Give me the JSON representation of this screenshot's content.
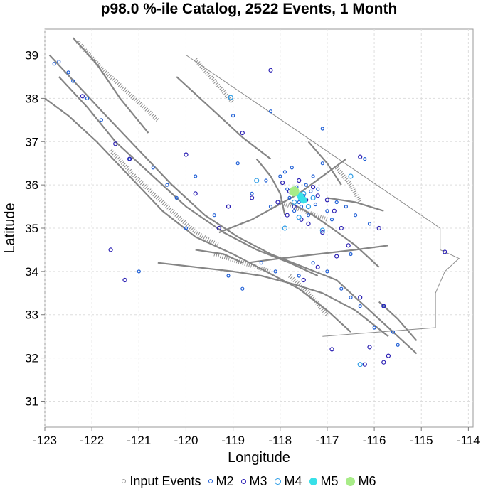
{
  "chart_data": {
    "type": "scatter",
    "title": "p98.0 %-ile Catalog, 2522 Events, 1 Month",
    "xlabel": "Longitude",
    "ylabel": "Latitude",
    "xlim": [
      -123,
      -113.9
    ],
    "ylim": [
      30.4,
      39.6
    ],
    "xticks": [
      -123,
      -122,
      -121,
      -120,
      -119,
      -118,
      -117,
      -116,
      -115,
      -114
    ],
    "yticks": [
      31,
      32,
      33,
      34,
      35,
      36,
      37,
      38,
      39
    ],
    "grid": true,
    "legend_position": "bottom",
    "legend": [
      {
        "label": "Input Events",
        "color": "#999999",
        "style": "ring"
      },
      {
        "label": "M2",
        "color": "#1f5fd6",
        "style": "ring"
      },
      {
        "label": "M3",
        "color": "#2a1fb3",
        "style": "ring"
      },
      {
        "label": "M4",
        "color": "#2f9de6",
        "style": "ring"
      },
      {
        "label": "M5",
        "color": "#38e0e8",
        "style": "filled"
      },
      {
        "label": "M6",
        "color": "#a8ec88",
        "style": "filled"
      }
    ],
    "series": [
      {
        "name": "M2",
        "points": [
          [
            -122.8,
            38.8
          ],
          [
            -122.7,
            38.85
          ],
          [
            -122.5,
            38.6
          ],
          [
            -122.4,
            38.4
          ],
          [
            -122.1,
            38.0
          ],
          [
            -121.8,
            37.5
          ],
          [
            -121.2,
            36.6
          ],
          [
            -120.7,
            36.4
          ],
          [
            -120.4,
            36.0
          ],
          [
            -120.2,
            35.7
          ],
          [
            -119.8,
            36.2
          ],
          [
            -119.4,
            35.3
          ],
          [
            -118.9,
            36.5
          ],
          [
            -118.6,
            35.8
          ],
          [
            -118.3,
            36.1
          ],
          [
            -118.2,
            35.5
          ],
          [
            -118.0,
            36.2
          ],
          [
            -117.9,
            36.3
          ],
          [
            -117.85,
            35.9
          ],
          [
            -117.8,
            35.7
          ],
          [
            -117.75,
            36.4
          ],
          [
            -117.7,
            35.4
          ],
          [
            -117.65,
            35.95
          ],
          [
            -117.6,
            35.6
          ],
          [
            -117.55,
            35.5
          ],
          [
            -117.5,
            35.75
          ],
          [
            -117.45,
            36.0
          ],
          [
            -117.4,
            35.3
          ],
          [
            -117.35,
            35.85
          ],
          [
            -117.3,
            36.2
          ],
          [
            -117.25,
            35.55
          ],
          [
            -117.2,
            35.9
          ],
          [
            -117.1,
            36.5
          ],
          [
            -117.0,
            35.4
          ],
          [
            -116.9,
            35.2
          ],
          [
            -116.8,
            35.6
          ],
          [
            -116.6,
            35.5
          ],
          [
            -116.4,
            35.3
          ],
          [
            -116.2,
            36.6
          ],
          [
            -116.1,
            35.1
          ],
          [
            -118.4,
            34.2
          ],
          [
            -118.1,
            34.0
          ],
          [
            -117.6,
            33.9
          ],
          [
            -117.3,
            34.2
          ],
          [
            -117.0,
            34.0
          ],
          [
            -116.7,
            33.6
          ],
          [
            -116.5,
            33.4
          ],
          [
            -116.3,
            33.2
          ],
          [
            -116.0,
            32.7
          ],
          [
            -115.8,
            33.2
          ],
          [
            -115.6,
            32.6
          ],
          [
            -115.5,
            32.3
          ],
          [
            -116.5,
            34.4
          ],
          [
            -119.1,
            33.9
          ],
          [
            -118.8,
            33.6
          ],
          [
            -117.1,
            37.3
          ],
          [
            -118.2,
            37.7
          ],
          [
            -119.0,
            37.6
          ],
          [
            -120.0,
            35.0
          ],
          [
            -121.0,
            34.0
          ]
        ]
      },
      {
        "name": "M3",
        "points": [
          [
            -122.2,
            38.05
          ],
          [
            -121.5,
            36.95
          ],
          [
            -121.2,
            36.6
          ],
          [
            -120.0,
            36.7
          ],
          [
            -119.8,
            35.8
          ],
          [
            -119.3,
            35.0
          ],
          [
            -119.1,
            35.5
          ],
          [
            -118.8,
            37.2
          ],
          [
            -118.6,
            35.7
          ],
          [
            -118.2,
            38.65
          ],
          [
            -118.05,
            35.6
          ],
          [
            -117.95,
            36.05
          ],
          [
            -117.85,
            35.3
          ],
          [
            -117.8,
            35.85
          ],
          [
            -117.7,
            35.5
          ],
          [
            -117.6,
            36.1
          ],
          [
            -117.55,
            35.2
          ],
          [
            -117.45,
            35.65
          ],
          [
            -117.4,
            35.1
          ],
          [
            -117.3,
            35.95
          ],
          [
            -117.2,
            35.75
          ],
          [
            -117.1,
            34.9
          ],
          [
            -117.0,
            35.65
          ],
          [
            -116.85,
            35.4
          ],
          [
            -116.7,
            35.0
          ],
          [
            -116.55,
            34.6
          ],
          [
            -116.3,
            36.65
          ],
          [
            -115.9,
            35.0
          ],
          [
            -115.8,
            33.2
          ],
          [
            -115.7,
            32.05
          ],
          [
            -115.8,
            31.9
          ],
          [
            -116.2,
            31.85
          ],
          [
            -116.8,
            34.35
          ],
          [
            -117.2,
            34.1
          ],
          [
            -117.5,
            33.8
          ],
          [
            -116.3,
            33.4
          ],
          [
            -114.5,
            34.45
          ],
          [
            -121.6,
            34.5
          ],
          [
            -121.3,
            33.8
          ],
          [
            -116.9,
            32.2
          ],
          [
            -116.1,
            32.25
          ]
        ]
      },
      {
        "name": "M4",
        "points": [
          [
            -119.05,
            38.02
          ],
          [
            -118.5,
            36.1
          ],
          [
            -117.9,
            35.0
          ],
          [
            -117.7,
            35.6
          ],
          [
            -117.5,
            35.8
          ],
          [
            -117.4,
            35.5
          ],
          [
            -117.3,
            35.7
          ],
          [
            -117.6,
            35.25
          ],
          [
            -116.5,
            36.2
          ],
          [
            -116.3,
            31.85
          ],
          [
            -117.1,
            34.95
          ]
        ]
      },
      {
        "name": "M5",
        "points": [
          [
            -117.55,
            35.7
          ],
          [
            -117.58,
            35.75
          ],
          [
            -117.5,
            35.65
          ]
        ]
      },
      {
        "name": "M6",
        "points": [
          [
            -117.7,
            35.85
          ]
        ]
      }
    ],
    "map_lines": [
      [
        [
          -122.9,
          39.0
        ],
        [
          -122.3,
          38.3
        ],
        [
          -121.7,
          37.6
        ],
        [
          -121.0,
          36.8
        ],
        [
          -120.3,
          36.0
        ],
        [
          -119.6,
          35.3
        ],
        [
          -118.9,
          34.8
        ],
        [
          -118.2,
          34.4
        ],
        [
          -117.5,
          34.1
        ],
        [
          -116.8,
          33.8
        ],
        [
          -116.2,
          33.2
        ],
        [
          -115.6,
          32.6
        ],
        [
          -115.1,
          32.1
        ]
      ],
      [
        [
          -122.7,
          38.5
        ],
        [
          -122.1,
          37.8
        ],
        [
          -121.5,
          37.0
        ],
        [
          -120.8,
          36.3
        ],
        [
          -120.0,
          35.5
        ],
        [
          -119.2,
          34.9
        ],
        [
          -118.5,
          34.5
        ],
        [
          -117.8,
          34.2
        ],
        [
          -117.2,
          33.9
        ]
      ],
      [
        [
          -123.0,
          38.0
        ],
        [
          -122.5,
          37.6
        ],
        [
          -121.9,
          37.0
        ],
        [
          -121.2,
          36.2
        ],
        [
          -120.5,
          35.4
        ],
        [
          -119.8,
          34.8
        ],
        [
          -119.0,
          34.4
        ],
        [
          -118.3,
          34.0
        ],
        [
          -117.6,
          33.6
        ],
        [
          -117.0,
          33.1
        ],
        [
          -116.5,
          32.6
        ]
      ],
      [
        [
          -122.4,
          39.4
        ],
        [
          -121.9,
          38.8
        ],
        [
          -121.4,
          38.0
        ],
        [
          -120.8,
          37.2
        ]
      ],
      [
        [
          -120.6,
          34.2
        ],
        [
          -119.8,
          34.1
        ],
        [
          -119.0,
          34.0
        ],
        [
          -118.4,
          33.9
        ],
        [
          -117.7,
          33.7
        ],
        [
          -117.1,
          33.5
        ],
        [
          -116.4,
          33.1
        ],
        [
          -115.7,
          32.5
        ]
      ],
      [
        [
          -119.3,
          34.9
        ],
        [
          -118.6,
          35.2
        ],
        [
          -118.1,
          35.5
        ],
        [
          -117.6,
          35.8
        ],
        [
          -117.1,
          36.2
        ],
        [
          -116.6,
          36.6
        ]
      ],
      [
        [
          -118.7,
          34.2
        ],
        [
          -118.0,
          34.3
        ],
        [
          -117.2,
          34.4
        ],
        [
          -116.4,
          34.5
        ],
        [
          -115.7,
          34.6
        ]
      ],
      [
        [
          -117.8,
          35.6
        ],
        [
          -117.3,
          35.3
        ],
        [
          -116.9,
          35.0
        ],
        [
          -116.4,
          34.6
        ],
        [
          -115.9,
          34.1
        ]
      ],
      [
        [
          -118.5,
          36.6
        ],
        [
          -118.2,
          36.2
        ],
        [
          -118.0,
          35.8
        ],
        [
          -117.9,
          35.3
        ]
      ],
      [
        [
          -117.0,
          35.7
        ],
        [
          -116.4,
          35.6
        ],
        [
          -115.8,
          35.4
        ]
      ],
      [
        [
          -120.2,
          38.5
        ],
        [
          -119.8,
          38.1
        ],
        [
          -119.3,
          37.6
        ],
        [
          -118.8,
          37.1
        ],
        [
          -118.2,
          36.6
        ]
      ],
      [
        [
          -117.4,
          37.0
        ],
        [
          -117.0,
          36.5
        ],
        [
          -116.7,
          36.0
        ]
      ],
      [
        [
          -115.9,
          33.3
        ],
        [
          -115.5,
          32.9
        ],
        [
          -115.1,
          32.4
        ]
      ],
      [
        [
          -119.8,
          34.5
        ],
        [
          -119.2,
          34.4
        ],
        [
          -118.8,
          34.2
        ]
      ]
    ],
    "hatched_lines": [
      [
        [
          -122.3,
          39.3
        ],
        [
          -121.8,
          38.7
        ],
        [
          -121.2,
          38.1
        ],
        [
          -120.6,
          37.5
        ]
      ],
      [
        [
          -121.6,
          36.8
        ],
        [
          -121.0,
          36.1
        ],
        [
          -120.4,
          35.5
        ],
        [
          -119.8,
          34.9
        ],
        [
          -119.3,
          34.6
        ]
      ],
      [
        [
          -119.4,
          34.4
        ],
        [
          -118.8,
          34.2
        ],
        [
          -118.2,
          34.0
        ]
      ],
      [
        [
          -118.0,
          35.6
        ],
        [
          -117.5,
          35.4
        ],
        [
          -117.0,
          35.2
        ]
      ],
      [
        [
          -119.8,
          38.9
        ],
        [
          -119.4,
          38.4
        ],
        [
          -119.0,
          37.9
        ]
      ],
      [
        [
          -117.8,
          33.9
        ],
        [
          -117.4,
          33.5
        ],
        [
          -117.0,
          33.0
        ]
      ],
      [
        [
          -116.8,
          36.4
        ],
        [
          -116.5,
          36.0
        ],
        [
          -116.3,
          35.6
        ]
      ]
    ],
    "border": [
      [
        -120.0,
        39.6
      ],
      [
        -120.0,
        39.0
      ],
      [
        -114.6,
        35.0
      ],
      [
        -114.6,
        34.5
      ],
      [
        -114.2,
        34.3
      ],
      [
        -114.5,
        34.0
      ],
      [
        -114.7,
        33.5
      ],
      [
        -114.7,
        32.7
      ],
      [
        -117.1,
        32.5
      ]
    ]
  }
}
